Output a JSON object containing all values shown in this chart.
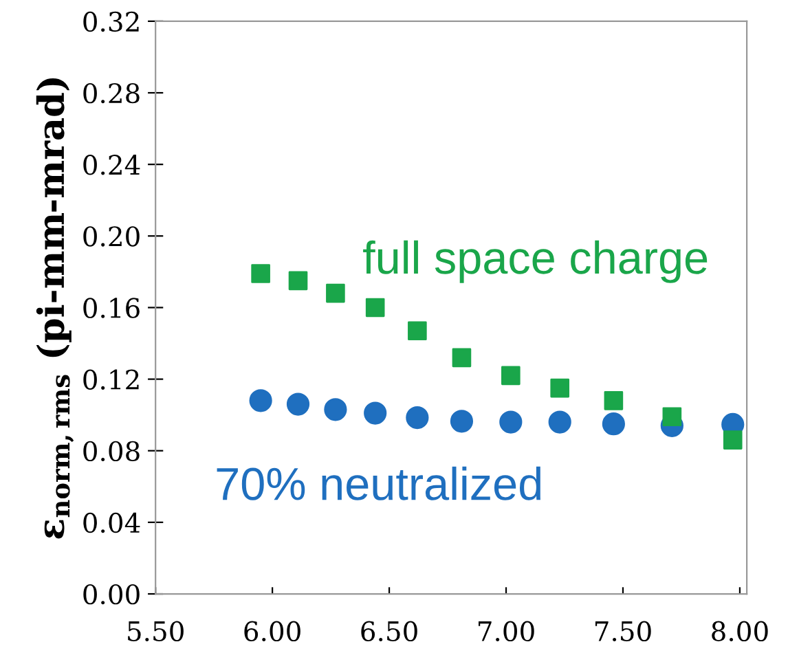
{
  "chart_data": {
    "type": "scatter",
    "ylabel": "ε$_{norm,rms}$ (pi-mm-mrad)",
    "x": [
      5.95,
      6.11,
      6.27,
      6.44,
      6.62,
      6.81,
      7.02,
      7.23,
      7.46,
      7.71,
      7.97
    ],
    "series": [
      {
        "name": "full space charge",
        "color": "#1aa64a",
        "marker": "square",
        "values": [
          0.179,
          0.175,
          0.168,
          0.16,
          0.147,
          0.132,
          0.122,
          0.115,
          0.108,
          0.099,
          0.086
        ]
      },
      {
        "name": "70% neutralized",
        "color": "#1f6fbf",
        "marker": "circle",
        "values": [
          0.108,
          0.106,
          0.103,
          0.101,
          0.0985,
          0.0965,
          0.096,
          0.096,
          0.095,
          0.094,
          0.0947
        ]
      }
    ],
    "xlim": [
      5.5,
      8.03
    ],
    "xticks": [
      {
        "value": 5.5,
        "label": "5.50"
      },
      {
        "value": 6.0,
        "label": "6.00"
      },
      {
        "value": 6.5,
        "label": "6.50"
      },
      {
        "value": 7.0,
        "label": "7.00"
      },
      {
        "value": 7.5,
        "label": "7.50"
      },
      {
        "value": 8.0,
        "label": "8.00"
      }
    ],
    "ylim": [
      0,
      0.32
    ],
    "yticks": [
      {
        "value": 0,
        "label": "0.00"
      },
      {
        "value": 0.04,
        "label": "0.04"
      },
      {
        "value": 0.08,
        "label": "0.08"
      },
      {
        "value": 0.12,
        "label": "0.12"
      },
      {
        "value": 0.16,
        "label": "0.16"
      },
      {
        "value": 0.2,
        "label": "0.20"
      },
      {
        "value": 0.24,
        "label": "0.24"
      },
      {
        "value": 0.28,
        "label": "0.28"
      },
      {
        "value": 0.32,
        "label": "0.32"
      }
    ],
    "grid": false,
    "legend": false
  }
}
